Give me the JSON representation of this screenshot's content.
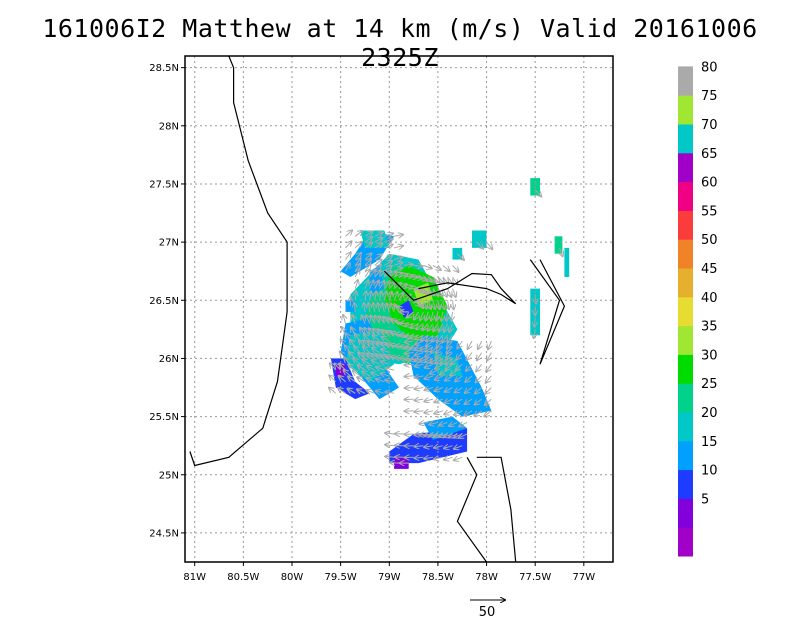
{
  "title": "161006I2 Matthew at 14 km (m/s) Valid 20161006 2325Z",
  "chart_data": {
    "type": "heatmap",
    "title": "161006I2 Matthew at 14 km (m/s) Valid 20161006 2325Z",
    "units": "m/s",
    "xlim": [
      -81.1,
      -76.7
    ],
    "ylim": [
      24.25,
      28.6
    ],
    "grid": true,
    "x_ticks": [
      {
        "value": -81.0,
        "label": "81W"
      },
      {
        "value": -80.5,
        "label": "80.5W"
      },
      {
        "value": -80.0,
        "label": "80W"
      },
      {
        "value": -79.5,
        "label": "79.5W"
      },
      {
        "value": -79.0,
        "label": "79W"
      },
      {
        "value": -78.5,
        "label": "78.5W"
      },
      {
        "value": -78.0,
        "label": "78W"
      },
      {
        "value": -77.5,
        "label": "77.5W"
      },
      {
        "value": -77.0,
        "label": "77W"
      }
    ],
    "y_ticks": [
      {
        "value": 24.5,
        "label": "24.5N"
      },
      {
        "value": 25.0,
        "label": "25N"
      },
      {
        "value": 25.5,
        "label": "25.5N"
      },
      {
        "value": 26.0,
        "label": "26N"
      },
      {
        "value": 26.5,
        "label": "26.5N"
      },
      {
        "value": 27.0,
        "label": "27N"
      },
      {
        "value": 27.5,
        "label": "27.5N"
      },
      {
        "value": 28.0,
        "label": "28N"
      },
      {
        "value": 28.5,
        "label": "28.5N"
      }
    ],
    "colorbar": {
      "bins": [
        {
          "color": "#a000c8"
        },
        {
          "color": "#8200dc",
          "label": "5"
        },
        {
          "color": "#1e3cff",
          "label": "10"
        },
        {
          "color": "#00a0ff",
          "label": "15"
        },
        {
          "color": "#00c8c8",
          "label": "20"
        },
        {
          "color": "#00d28c",
          "label": "25"
        },
        {
          "color": "#00dc00",
          "label": "30"
        },
        {
          "color": "#a0e632",
          "label": "35"
        },
        {
          "color": "#e6dc32",
          "label": "40"
        },
        {
          "color": "#e6af2d",
          "label": "45"
        },
        {
          "color": "#f08228",
          "label": "50"
        },
        {
          "color": "#fa3c3c",
          "label": "55"
        },
        {
          "color": "#f00082",
          "label": "60"
        },
        {
          "color": "#a000c8",
          "label": "65"
        },
        {
          "color": "#00c8c8",
          "label": "70"
        },
        {
          "color": "#a0e632",
          "label": "75"
        },
        {
          "color": "#aaaaaa",
          "label": "80"
        }
      ]
    },
    "patches": [
      {
        "color": "#00c8c8",
        "poly": [
          [
            -79.4,
            26.55
          ],
          [
            -79.0,
            26.9
          ],
          [
            -78.7,
            26.85
          ],
          [
            -78.5,
            26.55
          ],
          [
            -78.3,
            26.25
          ],
          [
            -78.45,
            26.05
          ],
          [
            -78.9,
            25.95
          ],
          [
            -79.25,
            26.0
          ],
          [
            -79.4,
            26.2
          ]
        ]
      },
      {
        "color": "#00d28c",
        "poly": [
          [
            -79.2,
            26.5
          ],
          [
            -78.95,
            26.8
          ],
          [
            -78.65,
            26.75
          ],
          [
            -78.45,
            26.45
          ],
          [
            -78.55,
            26.1
          ],
          [
            -78.8,
            25.95
          ],
          [
            -79.1,
            26.05
          ],
          [
            -79.25,
            26.3
          ]
        ]
      },
      {
        "color": "#00dc00",
        "poly": [
          [
            -79.0,
            26.7
          ],
          [
            -78.8,
            26.8
          ],
          [
            -78.55,
            26.7
          ],
          [
            -78.4,
            26.45
          ],
          [
            -78.5,
            26.2
          ],
          [
            -78.75,
            26.15
          ],
          [
            -78.95,
            26.3
          ],
          [
            -79.05,
            26.5
          ]
        ]
      },
      {
        "color": "#a0e632",
        "poly": [
          [
            -78.75,
            26.6
          ],
          [
            -78.6,
            26.65
          ],
          [
            -78.55,
            26.5
          ],
          [
            -78.7,
            26.45
          ]
        ]
      },
      {
        "color": "#1e3cff",
        "poly": [
          [
            -78.9,
            26.45
          ],
          [
            -78.8,
            26.5
          ],
          [
            -78.75,
            26.4
          ],
          [
            -78.85,
            26.35
          ]
        ]
      },
      {
        "color": "#00a0ff",
        "poly": [
          [
            -79.2,
            26.75
          ],
          [
            -79.1,
            26.8
          ],
          [
            -79.05,
            26.6
          ],
          [
            -79.2,
            26.55
          ]
        ]
      },
      {
        "color": "#00a0ff",
        "poly": [
          [
            -79.35,
            26.9
          ],
          [
            -79.2,
            27.1
          ],
          [
            -78.95,
            27.05
          ],
          [
            -79.1,
            26.85
          ],
          [
            -79.4,
            26.7
          ],
          [
            -79.5,
            26.75
          ]
        ]
      },
      {
        "color": "#00c8c8",
        "poly": [
          [
            -79.3,
            27.1
          ],
          [
            -79.05,
            27.1
          ],
          [
            -79.0,
            26.95
          ],
          [
            -79.25,
            26.95
          ]
        ]
      },
      {
        "color": "#00a0ff",
        "poly": [
          [
            -79.45,
            26.3
          ],
          [
            -79.2,
            26.35
          ],
          [
            -79.15,
            26.05
          ],
          [
            -78.9,
            25.75
          ],
          [
            -79.1,
            25.65
          ],
          [
            -79.3,
            25.85
          ],
          [
            -79.5,
            26.05
          ]
        ]
      },
      {
        "color": "#00c8c8",
        "poly": [
          [
            -79.4,
            26.2
          ],
          [
            -79.1,
            26.25
          ],
          [
            -78.95,
            25.95
          ],
          [
            -79.2,
            25.8
          ],
          [
            -79.45,
            25.95
          ]
        ]
      },
      {
        "color": "#1e3cff",
        "poly": [
          [
            -79.6,
            26.0
          ],
          [
            -79.45,
            26.0
          ],
          [
            -79.35,
            25.8
          ],
          [
            -79.2,
            25.7
          ],
          [
            -79.35,
            25.65
          ],
          [
            -79.55,
            25.75
          ]
        ]
      },
      {
        "color": "#8200dc",
        "poly": [
          [
            -79.55,
            25.95
          ],
          [
            -79.45,
            25.95
          ],
          [
            -79.45,
            25.85
          ],
          [
            -79.55,
            25.85
          ]
        ]
      },
      {
        "color": "#00a0ff",
        "poly": [
          [
            -78.65,
            26.2
          ],
          [
            -78.3,
            26.15
          ],
          [
            -78.05,
            25.75
          ],
          [
            -77.95,
            25.55
          ],
          [
            -78.25,
            25.5
          ],
          [
            -78.5,
            25.65
          ],
          [
            -78.75,
            25.85
          ],
          [
            -78.8,
            26.05
          ]
        ]
      },
      {
        "color": "#00c8c8",
        "poly": [
          [
            -78.55,
            26.05
          ],
          [
            -78.3,
            26.0
          ],
          [
            -78.25,
            25.85
          ],
          [
            -78.5,
            25.85
          ]
        ]
      },
      {
        "color": "#1e3cff",
        "poly": [
          [
            -78.75,
            25.35
          ],
          [
            -78.2,
            25.4
          ],
          [
            -78.2,
            25.2
          ],
          [
            -78.7,
            25.1
          ],
          [
            -79.0,
            25.1
          ],
          [
            -79.0,
            25.2
          ]
        ]
      },
      {
        "color": "#00a0ff",
        "poly": [
          [
            -78.65,
            25.45
          ],
          [
            -78.35,
            25.5
          ],
          [
            -78.2,
            25.4
          ],
          [
            -78.55,
            25.3
          ]
        ]
      },
      {
        "color": "#8200dc",
        "poly": [
          [
            -78.95,
            25.15
          ],
          [
            -78.8,
            25.15
          ],
          [
            -78.8,
            25.05
          ],
          [
            -78.95,
            25.05
          ]
        ]
      },
      {
        "color": "#00c8c8",
        "poly": [
          [
            -78.15,
            27.1
          ],
          [
            -78.0,
            27.1
          ],
          [
            -78.0,
            26.95
          ],
          [
            -78.15,
            26.95
          ]
        ]
      },
      {
        "color": "#00c8c8",
        "poly": [
          [
            -78.35,
            26.95
          ],
          [
            -78.25,
            26.95
          ],
          [
            -78.25,
            26.85
          ],
          [
            -78.35,
            26.85
          ]
        ]
      },
      {
        "color": "#00d28c",
        "poly": [
          [
            -77.55,
            27.55
          ],
          [
            -77.45,
            27.55
          ],
          [
            -77.45,
            27.4
          ],
          [
            -77.55,
            27.4
          ]
        ]
      },
      {
        "color": "#00d28c",
        "poly": [
          [
            -77.3,
            27.05
          ],
          [
            -77.22,
            27.05
          ],
          [
            -77.22,
            26.9
          ],
          [
            -77.3,
            26.9
          ]
        ]
      },
      {
        "color": "#00c8c8",
        "poly": [
          [
            -77.2,
            26.95
          ],
          [
            -77.15,
            26.95
          ],
          [
            -77.15,
            26.7
          ],
          [
            -77.2,
            26.7
          ]
        ]
      },
      {
        "color": "#00c8c8",
        "poly": [
          [
            -77.55,
            26.6
          ],
          [
            -77.45,
            26.6
          ],
          [
            -77.45,
            26.2
          ],
          [
            -77.55,
            26.2
          ]
        ]
      },
      {
        "color": "#00a0ff",
        "poly": [
          [
            -79.45,
            26.5
          ],
          [
            -79.35,
            26.5
          ],
          [
            -79.35,
            26.4
          ],
          [
            -79.45,
            26.4
          ]
        ]
      }
    ],
    "coastlines": [
      [
        [
          -80.65,
          28.6
        ],
        [
          -80.6,
          28.5
        ],
        [
          -80.6,
          28.2
        ],
        [
          -80.45,
          27.7
        ],
        [
          -80.25,
          27.25
        ],
        [
          -80.05,
          27.0
        ],
        [
          -80.05,
          26.4
        ],
        [
          -80.1,
          26.1
        ],
        [
          -80.15,
          25.8
        ],
        [
          -80.3,
          25.4
        ],
        [
          -80.65,
          25.15
        ],
        [
          -81.0,
          25.08
        ],
        [
          -81.05,
          25.2
        ]
      ],
      [
        [
          -79.05,
          26.75
        ],
        [
          -78.75,
          26.5
        ],
        [
          -78.4,
          26.6
        ],
        [
          -78.15,
          26.73
        ],
        [
          -77.95,
          26.72
        ],
        [
          -77.85,
          26.6
        ],
        [
          -77.7,
          26.47
        ],
        [
          -77.85,
          26.55
        ],
        [
          -78.0,
          26.6
        ],
        [
          -78.4,
          26.65
        ],
        [
          -78.7,
          26.6
        ]
      ],
      [
        [
          -77.55,
          26.85
        ],
        [
          -77.25,
          26.5
        ],
        [
          -77.45,
          25.95
        ],
        [
          -77.2,
          26.45
        ],
        [
          -77.45,
          26.85
        ]
      ],
      [
        [
          -78.2,
          25.15
        ],
        [
          -78.1,
          25.0
        ],
        [
          -78.3,
          24.6
        ],
        [
          -78.0,
          24.25
        ]
      ],
      [
        [
          -78.1,
          25.15
        ],
        [
          -77.85,
          25.15
        ],
        [
          -77.75,
          24.7
        ],
        [
          -77.7,
          24.25
        ]
      ]
    ],
    "vector_reference": {
      "value": 50,
      "label": "50"
    }
  }
}
